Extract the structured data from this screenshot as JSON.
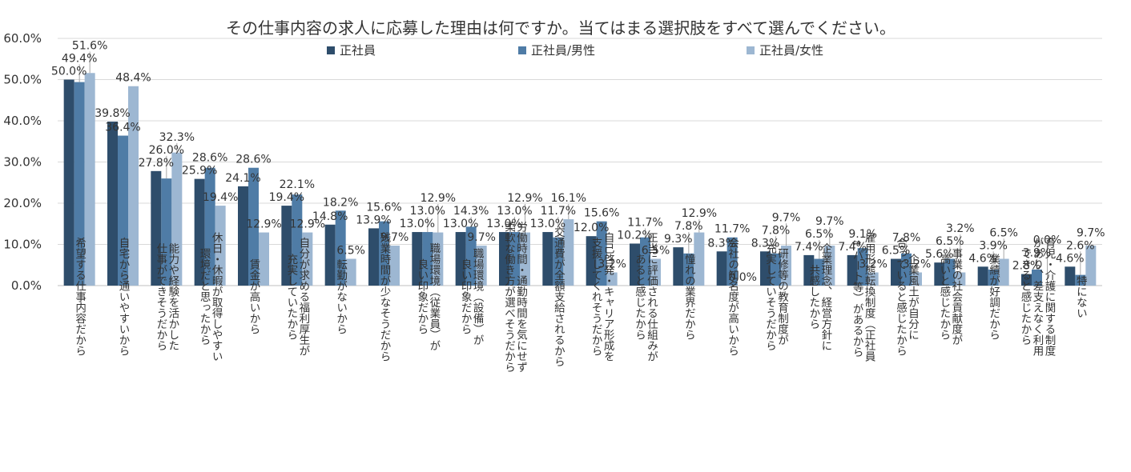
{
  "chart_data": {
    "type": "bar",
    "title": "その仕事内容の求人に応募した理由は何ですか。当てはまる選択肢をすべて選んでください。",
    "xlabel": "",
    "ylabel": "",
    "ylim": [
      0,
      60
    ],
    "yticks": [
      0,
      10,
      20,
      30,
      40,
      50,
      60
    ],
    "ytick_labels": [
      "0.0%",
      "10.0%",
      "20.0%",
      "30.0%",
      "40.0%",
      "50.0%",
      "60.0%"
    ],
    "grid": true,
    "legend_position": "top-center",
    "categories": [
      [
        "希望する仕事内容だから"
      ],
      [
        "自宅から通いやすいから"
      ],
      [
        "能力や経験を活かした",
        "仕事ができそうだから"
      ],
      [
        "休日・休暇が取得しやすい",
        "環境だと思ったから"
      ],
      [
        "賃金が高いから"
      ],
      [
        "自分が求める福利厚生が",
        "充実していたから"
      ],
      [
        "転勤がないから"
      ],
      [
        "残業時間が少なそうだから"
      ],
      [
        "職場環境（従業員）が",
        "良い印象だから"
      ],
      [
        "職場環境（設備）が",
        "良い印象だから"
      ],
      [
        "労働時間・通勤時間を気にせず",
        "柔軟な働き方が選べそうだから"
      ],
      [
        "交通費が全額支給されるから"
      ],
      [
        "自己啓発・キャリア形成を",
        "支援してくれそうだから"
      ],
      [
        "正当に評価される仕組みが",
        "あると感じたから"
      ],
      [
        "憧れの業界だから"
      ],
      [
        "会社の知名度が高いから"
      ],
      [
        "研修等の教育制度が",
        "充実していそうだから"
      ],
      [
        "企業理念、経営方針に",
        "共感したから"
      ],
      [
        "雇用形態転換制度（正社員",
        "⇔パート等）があるから"
      ],
      [
        "企業風土が自分に",
        "合っていると感じたから"
      ],
      [
        "事業の社会貢献度が",
        "高いと感じたから"
      ],
      [
        "業績が好調だから"
      ],
      [
        "育児・介護に関する制度",
        "があり、差支えなく利用",
        "できると感じたから"
      ],
      [
        "特にない"
      ]
    ],
    "series": [
      {
        "name": "正社員",
        "color": "#2e4d6b",
        "values": [
          50.0,
          39.8,
          27.8,
          25.9,
          24.1,
          19.4,
          14.8,
          13.9,
          13.0,
          13.0,
          13.0,
          13.0,
          12.0,
          10.2,
          9.3,
          8.3,
          8.3,
          7.4,
          7.4,
          6.5,
          5.6,
          4.6,
          2.8,
          4.6
        ]
      },
      {
        "name": "正社員/男性",
        "color": "#4f7ca6",
        "values": [
          49.4,
          36.4,
          26.0,
          28.6,
          28.6,
          22.1,
          18.2,
          15.6,
          13.0,
          14.3,
          13.0,
          11.7,
          15.6,
          11.7,
          7.8,
          11.7,
          7.8,
          6.5,
          9.1,
          7.8,
          6.5,
          3.9,
          3.9,
          2.6
        ]
      },
      {
        "name": "正社員/女性",
        "color": "#9db7d2",
        "values": [
          51.6,
          48.4,
          32.3,
          19.4,
          12.9,
          12.9,
          6.5,
          9.7,
          12.9,
          9.7,
          12.9,
          16.1,
          3.2,
          6.5,
          12.9,
          0.0,
          9.7,
          9.7,
          3.2,
          3.2,
          3.2,
          6.5,
          0.0,
          9.7
        ]
      }
    ],
    "data_label_format": "{v}%"
  }
}
